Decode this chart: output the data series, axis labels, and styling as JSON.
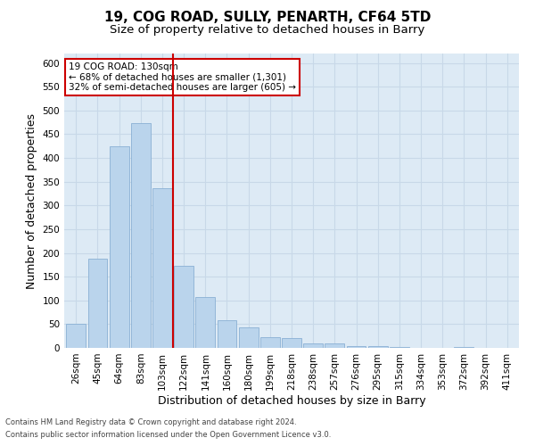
{
  "title1": "19, COG ROAD, SULLY, PENARTH, CF64 5TD",
  "title2": "Size of property relative to detached houses in Barry",
  "xlabel": "Distribution of detached houses by size in Barry",
  "ylabel": "Number of detached properties",
  "categories": [
    "26sqm",
    "45sqm",
    "64sqm",
    "83sqm",
    "103sqm",
    "122sqm",
    "141sqm",
    "160sqm",
    "180sqm",
    "199sqm",
    "218sqm",
    "238sqm",
    "257sqm",
    "276sqm",
    "295sqm",
    "315sqm",
    "334sqm",
    "353sqm",
    "372sqm",
    "392sqm",
    "411sqm"
  ],
  "values": [
    50,
    188,
    424,
    474,
    336,
    172,
    108,
    59,
    44,
    22,
    21,
    10,
    10,
    4,
    4,
    1,
    0,
    0,
    1,
    0,
    0
  ],
  "bar_color": "#bad4ec",
  "bar_edge_color": "#8ab0d4",
  "grid_color": "#c8d8e8",
  "background_color": "#ddeaf5",
  "vline_x": 4.5,
  "vline_color": "#cc0000",
  "annotation_text": "19 COG ROAD: 130sqm\n← 68% of detached houses are smaller (1,301)\n32% of semi-detached houses are larger (605) →",
  "annotation_box_facecolor": "#ffffff",
  "annotation_box_edge": "#cc0000",
  "ylim": [
    0,
    620
  ],
  "yticks": [
    0,
    50,
    100,
    150,
    200,
    250,
    300,
    350,
    400,
    450,
    500,
    550,
    600
  ],
  "footnote1": "Contains HM Land Registry data © Crown copyright and database right 2024.",
  "footnote2": "Contains public sector information licensed under the Open Government Licence v3.0.",
  "title_fontsize": 11,
  "subtitle_fontsize": 9.5,
  "tick_fontsize": 7.5,
  "ylabel_fontsize": 9,
  "xlabel_fontsize": 9,
  "annotation_fontsize": 7.5,
  "footnote_fontsize": 6
}
